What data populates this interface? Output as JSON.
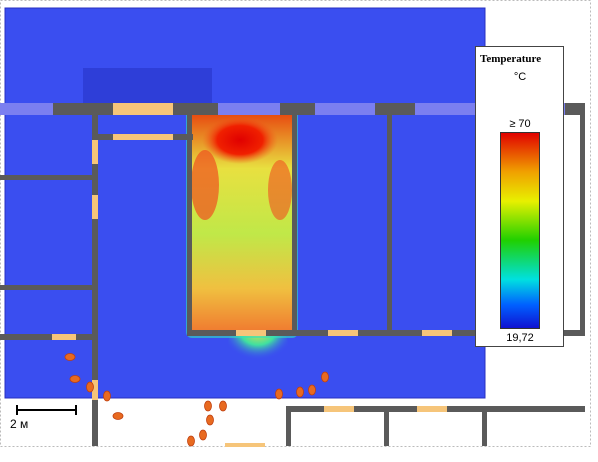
{
  "legend": {
    "title": "Temperature",
    "unit": "°C",
    "max_label": "≥ 70",
    "min_label": "19,72"
  },
  "scale_bar": {
    "label": "2 м"
  }
}
